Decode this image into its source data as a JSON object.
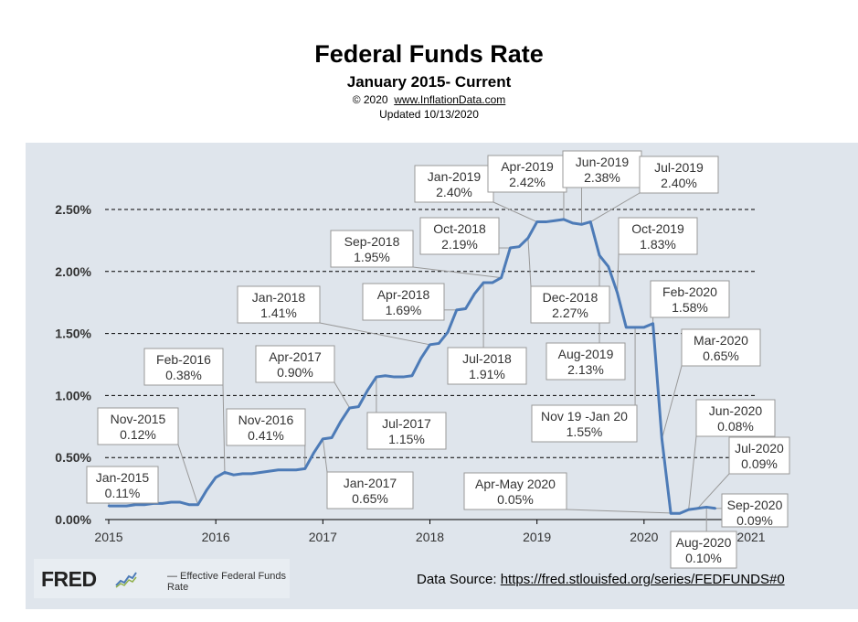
{
  "header": {
    "title": "Federal Funds Rate",
    "subtitle": "January 2015- Current",
    "copyright": "© 2020",
    "site": "www.InflationData.com",
    "updated": "Updated  10/13/2020"
  },
  "fred": {
    "logo": "FRED",
    "logo_icon": "sparkline-chart-icon",
    "legend_label": "— Effective Federal Funds Rate"
  },
  "source": {
    "label": "Data Source:",
    "url": "https://fred.stlouisfed.org/series/FEDFUNDS#0"
  },
  "colors": {
    "line": "#4d7bb7",
    "panel": "#dfe5ec",
    "grid": "#000000",
    "callout_border": "#999999"
  },
  "chart_data": {
    "type": "line",
    "title": "Federal Funds Rate",
    "ylim": [
      0,
      2.6
    ],
    "xlim": [
      2015.0,
      2021.0
    ],
    "grid": "horizontal dashed",
    "y_ticks": [
      {
        "value": 0.0,
        "label": "0.00%"
      },
      {
        "value": 0.5,
        "label": "0.50%"
      },
      {
        "value": 1.0,
        "label": "1.00%"
      },
      {
        "value": 1.5,
        "label": "1.50%"
      },
      {
        "value": 2.0,
        "label": "2.00%"
      },
      {
        "value": 2.5,
        "label": "2.50%"
      }
    ],
    "x_ticks": [
      {
        "value": 2015,
        "label": "2015"
      },
      {
        "value": 2016,
        "label": "2016"
      },
      {
        "value": 2017,
        "label": "2017"
      },
      {
        "value": 2018,
        "label": "2018"
      },
      {
        "value": 2019,
        "label": "2019"
      },
      {
        "value": 2020,
        "label": "2020"
      },
      {
        "value": 2021,
        "label": "2021"
      }
    ],
    "series": [
      {
        "name": "Effective Federal Funds Rate",
        "x": [
          "2015-01",
          "2015-02",
          "2015-03",
          "2015-04",
          "2015-05",
          "2015-06",
          "2015-07",
          "2015-08",
          "2015-09",
          "2015-10",
          "2015-11",
          "2015-12",
          "2016-01",
          "2016-02",
          "2016-03",
          "2016-04",
          "2016-05",
          "2016-06",
          "2016-07",
          "2016-08",
          "2016-09",
          "2016-10",
          "2016-11",
          "2016-12",
          "2017-01",
          "2017-02",
          "2017-03",
          "2017-04",
          "2017-05",
          "2017-06",
          "2017-07",
          "2017-08",
          "2017-09",
          "2017-10",
          "2017-11",
          "2017-12",
          "2018-01",
          "2018-02",
          "2018-03",
          "2018-04",
          "2018-05",
          "2018-06",
          "2018-07",
          "2018-08",
          "2018-09",
          "2018-10",
          "2018-11",
          "2018-12",
          "2019-01",
          "2019-02",
          "2019-03",
          "2019-04",
          "2019-05",
          "2019-06",
          "2019-07",
          "2019-08",
          "2019-09",
          "2019-10",
          "2019-11",
          "2019-12",
          "2020-01",
          "2020-02",
          "2020-03",
          "2020-04",
          "2020-05",
          "2020-06",
          "2020-07",
          "2020-08",
          "2020-09"
        ],
        "values": [
          0.11,
          0.11,
          0.11,
          0.12,
          0.12,
          0.13,
          0.13,
          0.14,
          0.14,
          0.12,
          0.12,
          0.24,
          0.34,
          0.38,
          0.36,
          0.37,
          0.37,
          0.38,
          0.39,
          0.4,
          0.4,
          0.4,
          0.41,
          0.54,
          0.65,
          0.66,
          0.79,
          0.9,
          0.91,
          1.04,
          1.15,
          1.16,
          1.15,
          1.15,
          1.16,
          1.3,
          1.41,
          1.42,
          1.51,
          1.69,
          1.7,
          1.82,
          1.91,
          1.91,
          1.95,
          2.19,
          2.2,
          2.27,
          2.4,
          2.4,
          2.41,
          2.42,
          2.39,
          2.38,
          2.4,
          2.13,
          2.04,
          1.83,
          1.55,
          1.55,
          1.55,
          1.58,
          0.65,
          0.05,
          0.05,
          0.08,
          0.09,
          0.1,
          0.09
        ]
      }
    ],
    "annotations": [
      {
        "id": "jan2015",
        "period": "Jan-2015",
        "value": "0.11%"
      },
      {
        "id": "nov2015",
        "period": "Nov-2015",
        "value": "0.12%"
      },
      {
        "id": "feb2016",
        "period": "Feb-2016",
        "value": "0.38%"
      },
      {
        "id": "nov2016",
        "period": "Nov-2016",
        "value": "0.41%"
      },
      {
        "id": "apr2017",
        "period": "Apr-2017",
        "value": "0.90%"
      },
      {
        "id": "jan2017",
        "period": "Jan-2017",
        "value": "0.65%"
      },
      {
        "id": "jul2017",
        "period": "Jul-2017",
        "value": "1.15%"
      },
      {
        "id": "jan2018",
        "period": "Jan-2018",
        "value": "1.41%"
      },
      {
        "id": "apr2018",
        "period": "Apr-2018",
        "value": "1.69%"
      },
      {
        "id": "sep2018",
        "period": "Sep-2018",
        "value": "1.95%"
      },
      {
        "id": "jul2018",
        "period": "Jul-2018",
        "value": "1.91%"
      },
      {
        "id": "oct2018",
        "period": "Oct-2018",
        "value": "2.19%"
      },
      {
        "id": "dec2018",
        "period": "Dec-2018",
        "value": "2.27%"
      },
      {
        "id": "jan2019",
        "period": "Jan-2019",
        "value": "2.40%"
      },
      {
        "id": "apr2019",
        "period": "Apr-2019",
        "value": "2.42%"
      },
      {
        "id": "jun2019",
        "period": "Jun-2019",
        "value": "2.38%"
      },
      {
        "id": "jul2019",
        "period": "Jul-2019",
        "value": "2.40%"
      },
      {
        "id": "oct2019",
        "period": "Oct-2019",
        "value": "1.83%"
      },
      {
        "id": "aug2019",
        "period": "Aug-2019",
        "value": "2.13%"
      },
      {
        "id": "nov19jan20",
        "period": "Nov 19 -Jan 20",
        "value": "1.55%"
      },
      {
        "id": "feb2020",
        "period": "Feb-2020",
        "value": "1.58%"
      },
      {
        "id": "mar2020",
        "period": "Mar-2020",
        "value": "0.65%"
      },
      {
        "id": "aprmay2020",
        "period": "Apr-May 2020",
        "value": "0.05%"
      },
      {
        "id": "jun2020",
        "period": "Jun-2020",
        "value": "0.08%"
      },
      {
        "id": "jul2020",
        "period": "Jul-2020",
        "value": "0.09%"
      },
      {
        "id": "sep2020",
        "period": "Sep-2020",
        "value": "0.09%"
      },
      {
        "id": "aug2020",
        "period": "Aug-2020",
        "value": "0.10%"
      }
    ]
  }
}
